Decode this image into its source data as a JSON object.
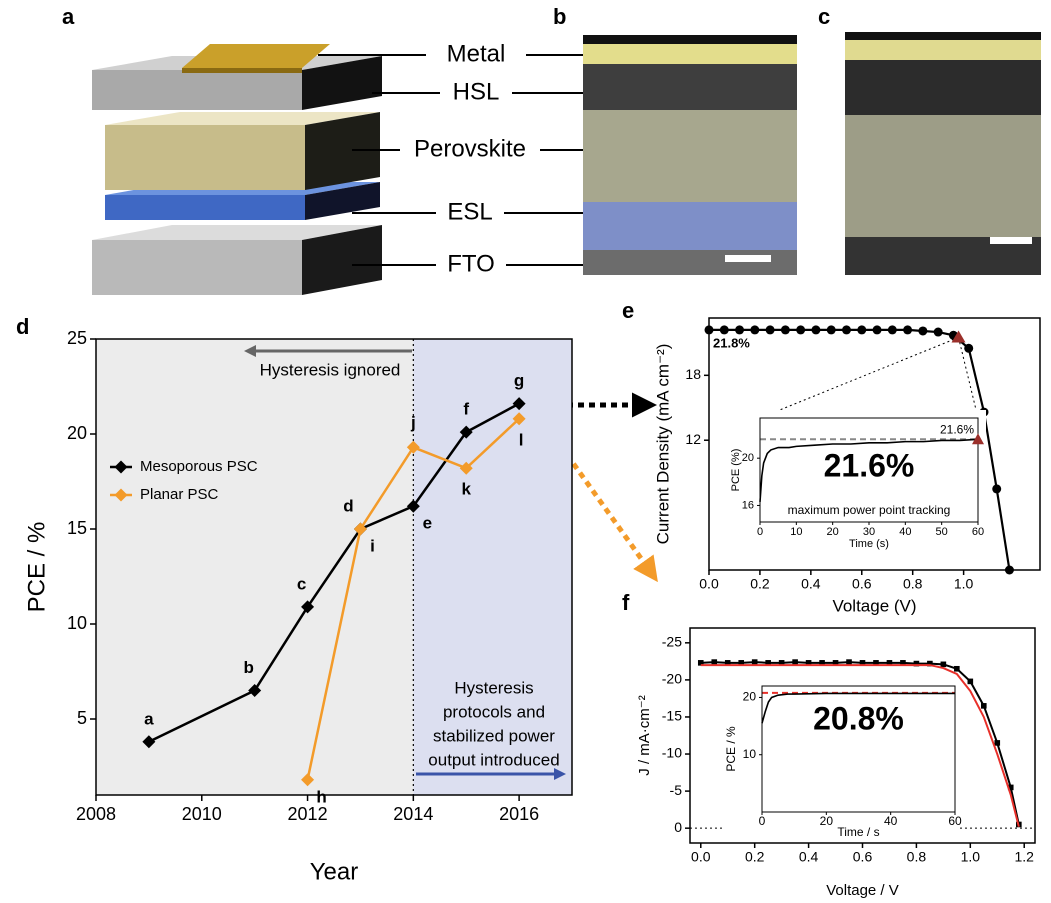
{
  "panel_labels": [
    "a",
    "b",
    "c",
    "d",
    "e",
    "f"
  ],
  "layer_labels": [
    "Metal",
    "HSL",
    "Perovskite",
    "ESL",
    "FTO"
  ],
  "chart_data": [
    {
      "type": "line",
      "xlabel": "Year",
      "ylabel": "PCE / %",
      "xlim": [
        2008,
        2017
      ],
      "xticks": [
        2008,
        2010,
        2012,
        2014,
        2016
      ],
      "ylim": [
        1,
        25
      ],
      "yticks": [
        5,
        10,
        15,
        20,
        25
      ],
      "legend": "left",
      "regions": [
        {
          "from": 2008,
          "to": 2014,
          "color": "#ececec"
        },
        {
          "from": 2014,
          "to": 2017,
          "color": "#dcdff0"
        }
      ],
      "series": [
        {
          "name": "Mesoporous PSC",
          "color": "#000000",
          "marker": "diamond",
          "x": [
            2009,
            2011,
            2012,
            2013,
            2014,
            2015,
            2016
          ],
          "values": [
            3.8,
            6.5,
            10.9,
            15.0,
            16.2,
            20.1,
            21.6
          ],
          "point_labels": [
            "a",
            "b",
            "c",
            "d",
            "e",
            "f",
            "g"
          ]
        },
        {
          "name": "Planar PSC",
          "color": "#f39b2a",
          "marker": "diamond",
          "x": [
            2012,
            2013,
            2014,
            2015,
            2016
          ],
          "values": [
            1.8,
            15.0,
            19.3,
            18.2,
            20.8
          ],
          "point_labels": [
            "h",
            "i",
            "j",
            "k",
            "l"
          ]
        }
      ],
      "annotations": {
        "hysteresis_ignored": "Hysteresis ignored",
        "hysteresis_protocols": [
          "Hysteresis",
          "protocols and",
          "stabilized power",
          "output introduced"
        ]
      }
    },
    {
      "type": "line",
      "xlabel": "Voltage (V)",
      "ylabel": "Current Density (mA cm⁻²)",
      "xlim": [
        0,
        1.3
      ],
      "xticks": [
        {
          "value": 0,
          "label": "0.0"
        },
        0.2,
        0.4,
        0.6,
        0.8,
        {
          "value": 1,
          "label": "1.0"
        }
      ],
      "ylim": [
        0,
        23.3
      ],
      "yticks": [
        12,
        18
      ],
      "x": [
        0,
        0.06,
        0.12,
        0.18,
        0.24,
        0.3,
        0.36,
        0.42,
        0.48,
        0.54,
        0.6,
        0.66,
        0.72,
        0.78,
        0.84,
        0.9,
        0.96,
        1.02,
        1.08,
        1.13,
        1.18
      ],
      "values": [
        22.2,
        22.2,
        22.2,
        22.2,
        22.2,
        22.2,
        22.2,
        22.2,
        22.2,
        22.2,
        22.2,
        22.2,
        22.2,
        22.2,
        22.1,
        22.0,
        21.7,
        20.5,
        14.6,
        7.5,
        0
      ],
      "color": "#000000",
      "marker": "circle",
      "value_annotation": "21.8%",
      "mpp": {
        "x": 0.98,
        "value": 21.5,
        "color": "#9b2f2a"
      },
      "inset": {
        "type": "line",
        "title": "maximum power point tracking",
        "xlabel": "Time (s)",
        "ylabel": "PCE (%)",
        "xlim": [
          0,
          60
        ],
        "xticks": [
          0,
          10,
          20,
          30,
          40,
          50,
          60
        ],
        "ylim": [
          14.6,
          23.4
        ],
        "yticks": [
          16,
          20
        ],
        "x": [
          0,
          0.5,
          1,
          2,
          3,
          5,
          8,
          10,
          15,
          20,
          25,
          30,
          35,
          40,
          45,
          50,
          55,
          60
        ],
        "values": [
          16.3,
          18.5,
          19.6,
          20.4,
          20.7,
          20.9,
          20.9,
          21.0,
          21.1,
          21.2,
          21.2,
          21.3,
          21.3,
          21.4,
          21.4,
          21.5,
          21.5,
          21.6
        ],
        "color": "#000000",
        "reference_line": 21.6,
        "reference_color": "#888888",
        "reference_label": "21.6%",
        "highlight": "21.6%",
        "end_marker_color": "#9b2f2a"
      }
    },
    {
      "type": "line",
      "xlabel": "Voltage / V",
      "ylabel": "J / mA·cm⁻²",
      "xlim": [
        -0.04,
        1.24
      ],
      "xticks": [
        {
          "value": 0,
          "label": "0.0"
        },
        0.2,
        0.4,
        0.6,
        0.8,
        {
          "value": 1,
          "label": "1.0"
        },
        1.2
      ],
      "ylim": [
        2,
        -27
      ],
      "yticks": [
        0,
        -5,
        -10,
        -15,
        -20,
        -25
      ],
      "zero_line": true,
      "x": [
        0,
        0.05,
        0.1,
        0.15,
        0.2,
        0.25,
        0.3,
        0.35,
        0.4,
        0.45,
        0.5,
        0.55,
        0.6,
        0.65,
        0.7,
        0.75,
        0.8,
        0.85,
        0.9,
        0.95,
        1.0,
        1.05,
        1.1,
        1.15,
        1.18
      ],
      "series": [
        {
          "color": "#000000",
          "marker": "square",
          "values": [
            -22.3,
            -22.4,
            -22.3,
            -22.3,
            -22.4,
            -22.3,
            -22.3,
            -22.4,
            -22.3,
            -22.3,
            -22.3,
            -22.4,
            -22.3,
            -22.3,
            -22.3,
            -22.3,
            -22.2,
            -22.2,
            -22.1,
            -21.5,
            -19.8,
            -16.5,
            -11.5,
            -5.5,
            -0.5
          ]
        },
        {
          "color": "#e8302a",
          "values": [
            -22.0,
            -22.0,
            -22.0,
            -22.0,
            -22.0,
            -22.0,
            -22.0,
            -22.0,
            -22.0,
            -22.0,
            -22.0,
            -22.0,
            -22.0,
            -22.0,
            -22.0,
            -22.0,
            -22.0,
            -22.0,
            -21.6,
            -20.8,
            -18.5,
            -15.0,
            -10.0,
            -4.5,
            -0.2
          ]
        }
      ],
      "inset": {
        "type": "line",
        "xlabel": "Time / s",
        "ylabel": "PCE / %",
        "xlim": [
          0,
          60
        ],
        "xticks": [
          0,
          20,
          40,
          60
        ],
        "ylim": [
          0,
          22
        ],
        "yticks": [
          10,
          20
        ],
        "x": [
          0,
          1,
          2,
          3,
          5,
          8,
          10,
          20,
          30,
          40,
          50,
          60
        ],
        "values": [
          15.5,
          17.5,
          19.2,
          20.0,
          20.4,
          20.6,
          20.6,
          20.7,
          20.7,
          20.7,
          20.7,
          20.7
        ],
        "color": "#000000",
        "reference_line": 20.8,
        "reference_color": "#e8302a",
        "highlight": "20.8%"
      }
    }
  ]
}
